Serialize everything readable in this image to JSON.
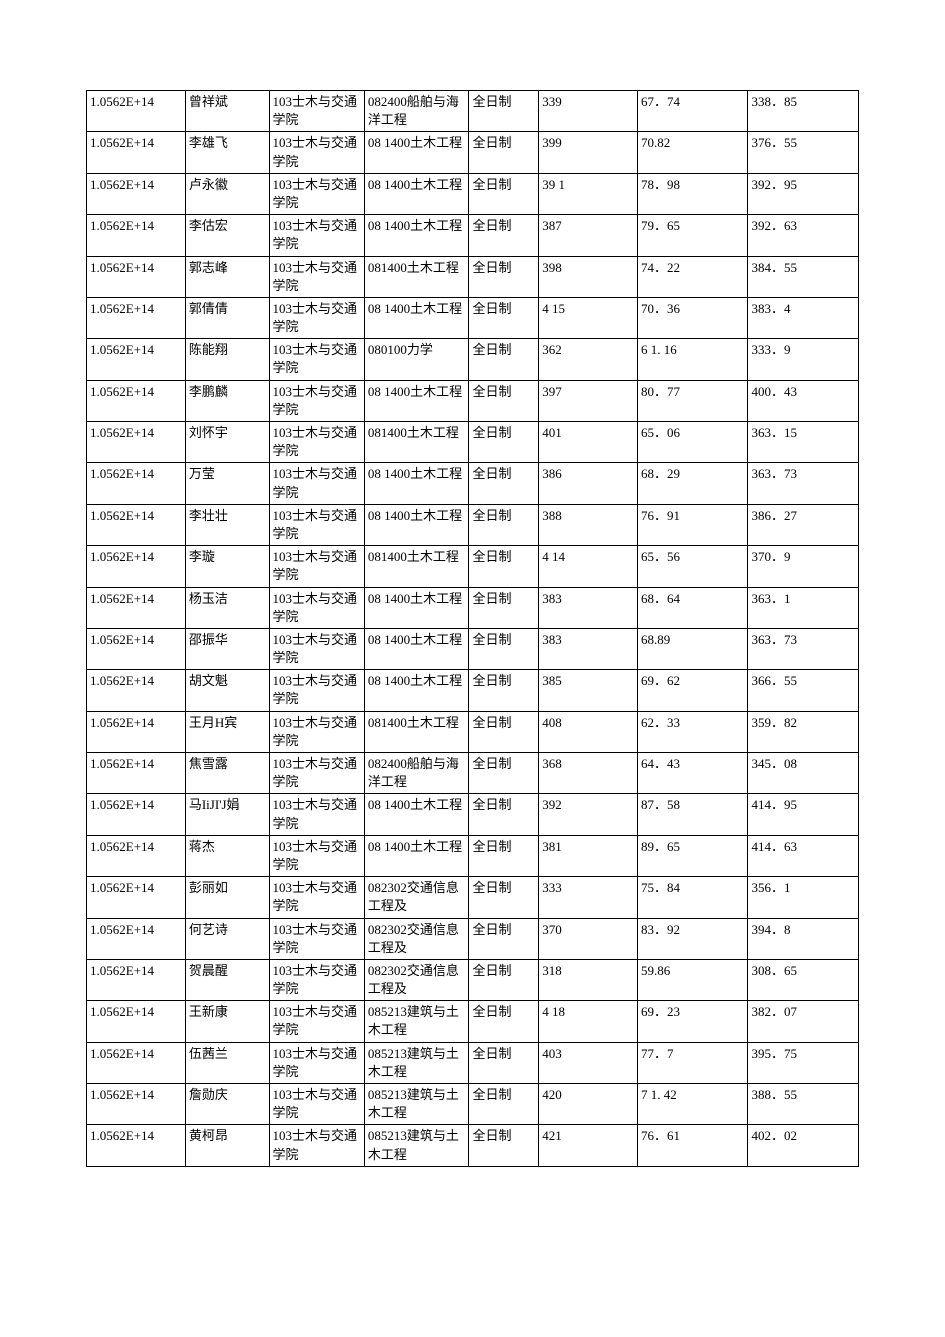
{
  "table": {
    "columns": [
      {
        "key": "id",
        "class": "col-id"
      },
      {
        "key": "name",
        "class": "col-name"
      },
      {
        "key": "college",
        "class": "col-college"
      },
      {
        "key": "major",
        "class": "col-major"
      },
      {
        "key": "mode",
        "class": "col-mode"
      },
      {
        "key": "score1",
        "class": "col-score1"
      },
      {
        "key": "score2",
        "class": "col-score2"
      },
      {
        "key": "score3",
        "class": "col-score3"
      }
    ],
    "rows": [
      {
        "id": "1.0562E+14",
        "name": "曾祥斌",
        "college": "103士木与交通学院",
        "major": "082400船舶与海洋工程",
        "mode": "全日制",
        "score1": "339",
        "score2": "67．74",
        "score3": "338．85"
      },
      {
        "id": "1.0562E+14",
        "name": "李雄飞",
        "college": "103士木与交通学院",
        "major": "08 1400土木工程",
        "mode": "全日制",
        "score1": "399",
        "score2": "70.82",
        "score3": "376．55"
      },
      {
        "id": "1.0562E+14",
        "name": "卢永徽",
        "college": "103士木与交通学院",
        "major": "08 1400土木工程",
        "mode": "全日制",
        "score1": "39 1",
        "score2": "78．98",
        "score3": "392．95"
      },
      {
        "id": "1.0562E+14",
        "name": "李估宏",
        "college": "103士木与交通学院",
        "major": "08 1400土木工程",
        "mode": "全日制",
        "score1": "387",
        "score2": "79．65",
        "score3": "392．63"
      },
      {
        "id": "1.0562E+14",
        "name": "郭志峰",
        "college": "103士木与交通学院",
        "major": "081400土木工程",
        "mode": "全日制",
        "score1": "398",
        "score2": "74．22",
        "score3": "384．55"
      },
      {
        "id": "1.0562E+14",
        "name": "郭倩倩",
        "college": "103士木与交通学院",
        "major": "08 1400土木工程",
        "mode": "全日制",
        "score1": "4 15",
        "score2": "70．36",
        "score3": "383．4"
      },
      {
        "id": "1.0562E+14",
        "name": "陈能翔",
        "college": "103士木与交通学院",
        "major": "080100力学",
        "mode": "全日制",
        "score1": "362",
        "score2": "6 1. 16",
        "score3": "333．9"
      },
      {
        "id": "1.0562E+14",
        "name": "李鹏麟",
        "college": "103士木与交通学院",
        "major": "08 1400土木工程",
        "mode": "全日制",
        "score1": "397",
        "score2": "80．77",
        "score3": "400．43"
      },
      {
        "id": "1.0562E+14",
        "name": "刘怀宇",
        "college": "103士木与交通学院",
        "major": "081400土木工程",
        "mode": "全日制",
        "score1": "401",
        "score2": "65．06",
        "score3": "363．15"
      },
      {
        "id": "1.0562E+14",
        "name": "万莹",
        "college": "103士木与交通学院",
        "major": "08 1400土木工程",
        "mode": "全日制",
        "score1": "386",
        "score2": "68．29",
        "score3": "363．73"
      },
      {
        "id": "1.0562E+14",
        "name": "李壮壮",
        "college": "103士木与交通学院",
        "major": "08 1400土木工程",
        "mode": "全日制",
        "score1": "388",
        "score2": "76．91",
        "score3": "386．27"
      },
      {
        "id": "1.0562E+14",
        "name": "李璇",
        "college": "103士木与交通学院",
        "major": "081400土木工程",
        "mode": "全日制",
        "score1": "4 14",
        "score2": "65．56",
        "score3": "370．9"
      },
      {
        "id": "1.0562E+14",
        "name": "杨玉洁",
        "college": "103士木与交通学院",
        "major": "08 1400土木工程",
        "mode": "全日制",
        "score1": "383",
        "score2": "68．64",
        "score3": "363．1"
      },
      {
        "id": "1.0562E+14",
        "name": "邵振华",
        "college": "103士木与交通学院",
        "major": "08 1400土木工程",
        "mode": "全日制",
        "score1": "383",
        "score2": "68.89",
        "score3": "363．73"
      },
      {
        "id": "1.0562E+14",
        "name": "胡文魁",
        "college": "103士木与交通学院",
        "major": "08 1400土木工程",
        "mode": "全日制",
        "score1": "385",
        "score2": "69．62",
        "score3": "366．55"
      },
      {
        "id": "1.0562E+14",
        "name": "王月H宾",
        "college": "103士木与交通学院",
        "major": "081400土木工程",
        "mode": "全日制",
        "score1": "408",
        "score2": "62．33",
        "score3": "359．82"
      },
      {
        "id": "1.0562E+14",
        "name": "焦雪露",
        "college": "103士木与交通学院",
        "major": "082400船舶与海洋工程",
        "mode": "全日制",
        "score1": "368",
        "score2": "64．43",
        "score3": "345．08"
      },
      {
        "id": "1.0562E+14",
        "name": "马IiJI'J娟",
        "college": "103士木与交通学院",
        "major": "08 1400土木工程",
        "mode": "全日制",
        "score1": "392",
        "score2": "87．58",
        "score3": "414．95"
      },
      {
        "id": "1.0562E+14",
        "name": "蒋杰",
        "college": "103士木与交通学院",
        "major": "08 1400土木工程",
        "mode": "全日制",
        "score1": "381",
        "score2": "89．65",
        "score3": "414．63"
      },
      {
        "id": "1.0562E+14",
        "name": "彭丽如",
        "college": "103士木与交通学院",
        "major": "082302交通信息工程及",
        "mode": "全日制",
        "score1": "333",
        "score2": "75．84",
        "score3": "356．1"
      },
      {
        "id": "1.0562E+14",
        "name": "何艺诗",
        "college": "103士木与交通学院",
        "major": "082302交通信息工程及",
        "mode": "全日制",
        "score1": "370",
        "score2": "83．92",
        "score3": "394．8"
      },
      {
        "id": "1.0562E+14",
        "name": "贺晨醒",
        "college": "103士木与交通学院",
        "major": "082302交通信息工程及",
        "mode": "全日制",
        "score1": "318",
        "score2": "59.86",
        "score3": "308．65"
      },
      {
        "id": "1.0562E+14",
        "name": "王新康",
        "college": "103士木与交通学院",
        "major": "085213建筑与土木工程",
        "mode": "全日制",
        "score1": "4 18",
        "score2": "69．23",
        "score3": "382．07"
      },
      {
        "id": "1.0562E+14",
        "name": "伍茜兰",
        "college": "103士木与交通学院",
        "major": "085213建筑与土木工程",
        "mode": "全日制",
        "score1": "403",
        "score2": "77．7",
        "score3": "395．75"
      },
      {
        "id": "1.0562E+14",
        "name": "詹勋庆",
        "college": "103士木与交通学院",
        "major": "085213建筑与土木工程",
        "mode": "全日制",
        "score1": "420",
        "score2": "7 1. 42",
        "score3": "388．55"
      },
      {
        "id": "1.0562E+14",
        "name": "黄柯昂",
        "college": "103士木与交通学院",
        "major": "085213建筑与土木工程",
        "mode": "全日制",
        "score1": "421",
        "score2": "76．61",
        "score3": "402．02"
      }
    ],
    "border_color": "#000000",
    "background_color": "#ffffff",
    "text_color": "#000000",
    "font_size": 13
  }
}
